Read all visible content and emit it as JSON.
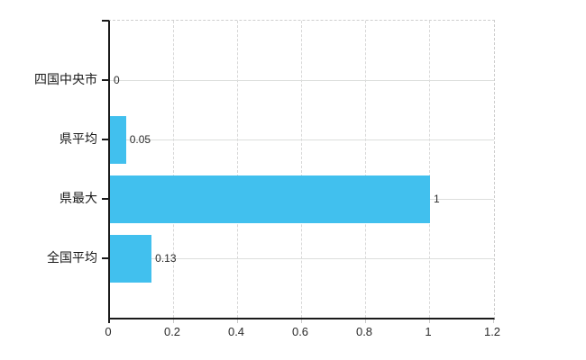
{
  "chart_data": {
    "type": "bar",
    "orientation": "horizontal",
    "title": "",
    "xlabel": "",
    "ylabel": "",
    "categories": [
      "四国中央市",
      "県平均",
      "県最大",
      "全国平均"
    ],
    "values": [
      0,
      0.05,
      1,
      0.13
    ],
    "value_labels": [
      "0",
      "0.05",
      "1",
      "0.13"
    ],
    "xlim": [
      0,
      1.2
    ],
    "xticks": [
      0,
      0.2,
      0.4,
      0.6,
      0.8,
      1,
      1.2
    ],
    "xtick_labels": [
      "0",
      "0.2",
      "0.4",
      "0.6",
      "0.8",
      "1",
      "1.2"
    ],
    "grid": true,
    "legend": false
  },
  "colors": {
    "bar": "#41c0ee",
    "axis": "#1a1a1a",
    "grid_dashed": "#d8d8d8",
    "grid_solid": "#dcdedc",
    "text": "#2b2b2b",
    "background": "#ffffff"
  }
}
